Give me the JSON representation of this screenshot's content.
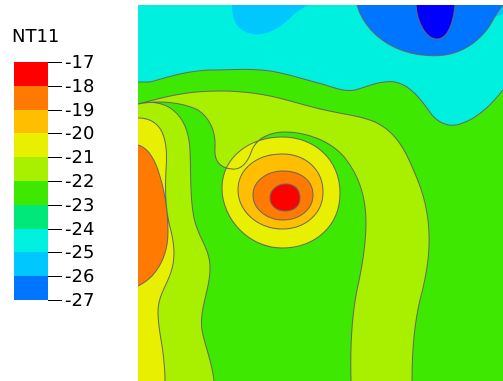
{
  "chart_data": {
    "type": "heatmap",
    "title": "NT11",
    "legend": {
      "title": "NT11",
      "placement": "left",
      "bands": [
        {
          "label": "-17",
          "color": "#ff0000"
        },
        {
          "label": "-18",
          "color": "#ff7a00"
        },
        {
          "label": "-19",
          "color": "#ffbe00"
        },
        {
          "label": "-20",
          "color": "#e8ef00"
        },
        {
          "label": "-21",
          "color": "#a8ef00"
        },
        {
          "label": "-22",
          "color": "#3fe800"
        },
        {
          "label": "-23",
          "color": "#00e87a"
        },
        {
          "label": "-24",
          "color": "#00f0df"
        },
        {
          "label": "-25",
          "color": "#00c8ff"
        },
        {
          "label": "-26",
          "color": "#0075ff"
        },
        {
          "label": "-27",
          "color": "#0000ff"
        }
      ]
    },
    "contour_colors": {
      "hot": "#ff0000",
      "orange": "#ff7a00",
      "yellow": "#ffbe00",
      "yellowgreen": "#e8ef00",
      "lime": "#a8ef00",
      "green": "#3fe800",
      "seafoam": "#00e87a",
      "cyan": "#00f0df",
      "sky": "#00c8ff",
      "blue": "#0075ff",
      "deepblue": "#0000ff"
    }
  }
}
